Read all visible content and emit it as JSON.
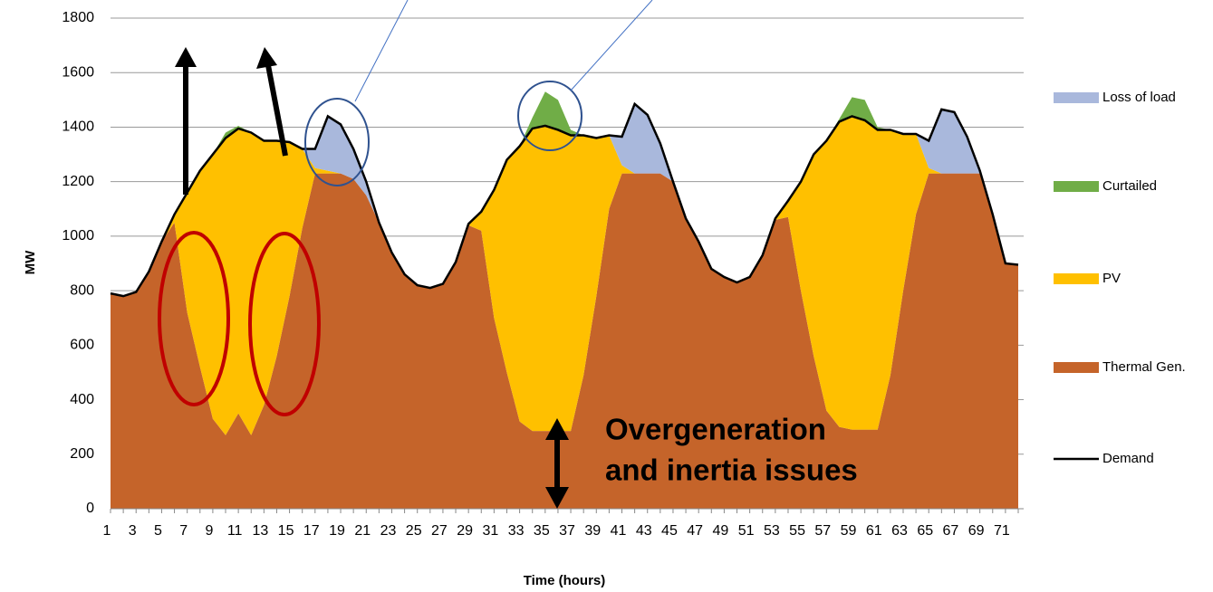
{
  "chart_data": {
    "type": "stacked_area",
    "xlabel": "Time (hours)",
    "ylabel": "MW",
    "categories": [
      1,
      null,
      3,
      null,
      5,
      null,
      7,
      null,
      9,
      null,
      11,
      null,
      13,
      null,
      15,
      null,
      17,
      null,
      19,
      null,
      21,
      null,
      23,
      null,
      25,
      null,
      27,
      null,
      29,
      null,
      31,
      null,
      33,
      null,
      35,
      null,
      37,
      null,
      39,
      null,
      41,
      null,
      43,
      null,
      45,
      null,
      47,
      null,
      49,
      null,
      51,
      null,
      53,
      null,
      55,
      null,
      57,
      null,
      59,
      null,
      61,
      null,
      63,
      null,
      65,
      null,
      67,
      null,
      69,
      null,
      71,
      null
    ],
    "ylim": [
      0,
      1800
    ],
    "yticks": [
      0,
      200,
      400,
      600,
      800,
      1000,
      1200,
      1400,
      1600,
      1800
    ],
    "grid": true,
    "series": [
      {
        "name": "Thermal Gen.",
        "color": "#c5642a",
        "values": [
          790,
          780,
          795,
          870,
          980,
          1050,
          720,
          520,
          330,
          270,
          350,
          270,
          380,
          560,
          780,
          1030,
          1230,
          1230,
          1230,
          1210,
          1150,
          1050,
          940,
          860,
          820,
          810,
          825,
          905,
          1040,
          1020,
          700,
          500,
          320,
          285,
          285,
          285,
          285,
          490,
          780,
          1100,
          1230,
          1230,
          1230,
          1230,
          1200,
          1065,
          980,
          880,
          850,
          830,
          850,
          930,
          1060,
          1070,
          800,
          560,
          360,
          300,
          290,
          290,
          290,
          490,
          800,
          1080,
          1230,
          1230,
          1230,
          1230,
          1230,
          1080,
          900,
          895
        ]
      },
      {
        "name": "PV",
        "color": "#ffc000",
        "values": [
          0,
          0,
          0,
          0,
          0,
          30,
          440,
          720,
          970,
          1090,
          1045,
          1110,
          970,
          790,
          565,
          290,
          20,
          10,
          0,
          0,
          0,
          0,
          0,
          0,
          0,
          0,
          0,
          0,
          5,
          70,
          470,
          780,
          1010,
          1110,
          1120,
          1105,
          1085,
          880,
          580,
          270,
          30,
          0,
          0,
          0,
          0,
          0,
          0,
          0,
          0,
          0,
          0,
          0,
          5,
          60,
          400,
          740,
          990,
          1120,
          1150,
          1135,
          1100,
          900,
          575,
          295,
          20,
          0,
          0,
          0,
          0,
          0,
          0,
          0
        ]
      },
      {
        "name": "Curtailed",
        "color": "#70ad47",
        "values": [
          0,
          0,
          0,
          0,
          0,
          0,
          0,
          0,
          0,
          20,
          10,
          0,
          0,
          0,
          0,
          0,
          0,
          0,
          0,
          0,
          0,
          0,
          0,
          0,
          0,
          0,
          0,
          0,
          0,
          0,
          0,
          0,
          0,
          40,
          125,
          110,
          20,
          0,
          0,
          0,
          0,
          0,
          0,
          0,
          0,
          0,
          0,
          0,
          0,
          0,
          0,
          0,
          0,
          0,
          0,
          0,
          0,
          10,
          70,
          75,
          10,
          0,
          0,
          0,
          0,
          0,
          0,
          0,
          0,
          0,
          0,
          0
        ]
      },
      {
        "name": "Loss of load",
        "color": "#a9b8dc",
        "values": [
          0,
          0,
          0,
          0,
          0,
          0,
          0,
          0,
          0,
          0,
          0,
          0,
          0,
          0,
          0,
          0,
          70,
          200,
          180,
          110,
          50,
          0,
          0,
          0,
          0,
          0,
          0,
          0,
          0,
          0,
          0,
          0,
          0,
          0,
          0,
          0,
          0,
          0,
          0,
          0,
          105,
          255,
          215,
          110,
          0,
          0,
          0,
          0,
          0,
          0,
          0,
          0,
          0,
          0,
          0,
          0,
          0,
          0,
          0,
          0,
          0,
          0,
          0,
          0,
          100,
          235,
          225,
          135,
          10,
          0,
          0,
          0
        ]
      }
    ],
    "line": {
      "name": "Demand",
      "color": "#000000",
      "values": [
        790,
        780,
        795,
        870,
        980,
        1080,
        1160,
        1240,
        1300,
        1360,
        1395,
        1380,
        1350,
        1350,
        1345,
        1320,
        1320,
        1440,
        1410,
        1320,
        1200,
        1050,
        940,
        860,
        820,
        810,
        825,
        905,
        1045,
        1090,
        1170,
        1280,
        1330,
        1395,
        1405,
        1390,
        1370,
        1370,
        1360,
        1370,
        1365,
        1485,
        1445,
        1340,
        1200,
        1065,
        980,
        880,
        850,
        830,
        850,
        930,
        1065,
        1130,
        1200,
        1300,
        1350,
        1420,
        1440,
        1425,
        1390,
        1390,
        1375,
        1375,
        1350,
        1465,
        1455,
        1365,
        1240,
        1080,
        900,
        895
      ]
    },
    "annotations": [
      "Overgeneration",
      "and inertia issues"
    ]
  }
}
